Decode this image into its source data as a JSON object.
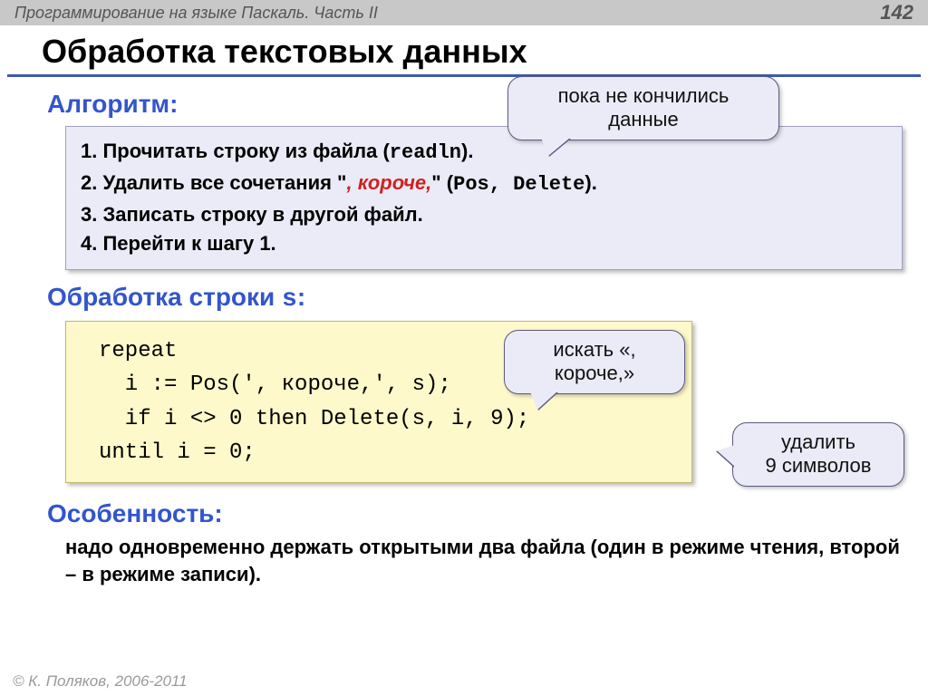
{
  "header": {
    "breadcrumb": "Программирование на языке Паскаль. Часть II",
    "page_number": "142"
  },
  "title": "Обработка текстовых данных",
  "section_algo": {
    "heading": "Алгоритм:",
    "step1_a": "1. Прочитать строку из файла (",
    "step1_mono": "readln",
    "step1_b": ").",
    "step2_a": "2. Удалить все сочетания \"",
    "step2_red": ", короче,",
    "step2_b": "\" (",
    "step2_mono": "Pos, Delete",
    "step2_c": ").",
    "step3": "3. Записать строку в другой файл.",
    "step4": "4. Перейти к шагу 1."
  },
  "callout_top": {
    "l1": "пока не кончились",
    "l2": "данные"
  },
  "section_proc": {
    "heading_a": "Обработка строки ",
    "heading_var": "s",
    "heading_b": ":",
    "code_l1": "repeat",
    "code_l2": "  i := Pos(', короче,', s);",
    "code_l3": "  if i <> 0 then Delete(s, i, 9);",
    "code_l4": "until i = 0;"
  },
  "callout_search": {
    "l1": "искать «,",
    "l2": "короче,»"
  },
  "callout_delete": {
    "l1": "удалить",
    "l2": "9 символов"
  },
  "section_feature": {
    "heading": "Особенность:",
    "text": "надо одновременно держать открытыми два файла (один в режиме чтения, второй – в режиме записи)."
  },
  "copyright": "© К. Поляков, 2006-2011",
  "colors": {
    "header_bg": "#c8c8c8",
    "title_underline": "#3b5ba8",
    "subtitle": "#3355cc",
    "algo_bg": "#eaebf6",
    "code_bg": "#fef9ca",
    "red": "#d02020",
    "copyright": "#9a9a9a"
  }
}
